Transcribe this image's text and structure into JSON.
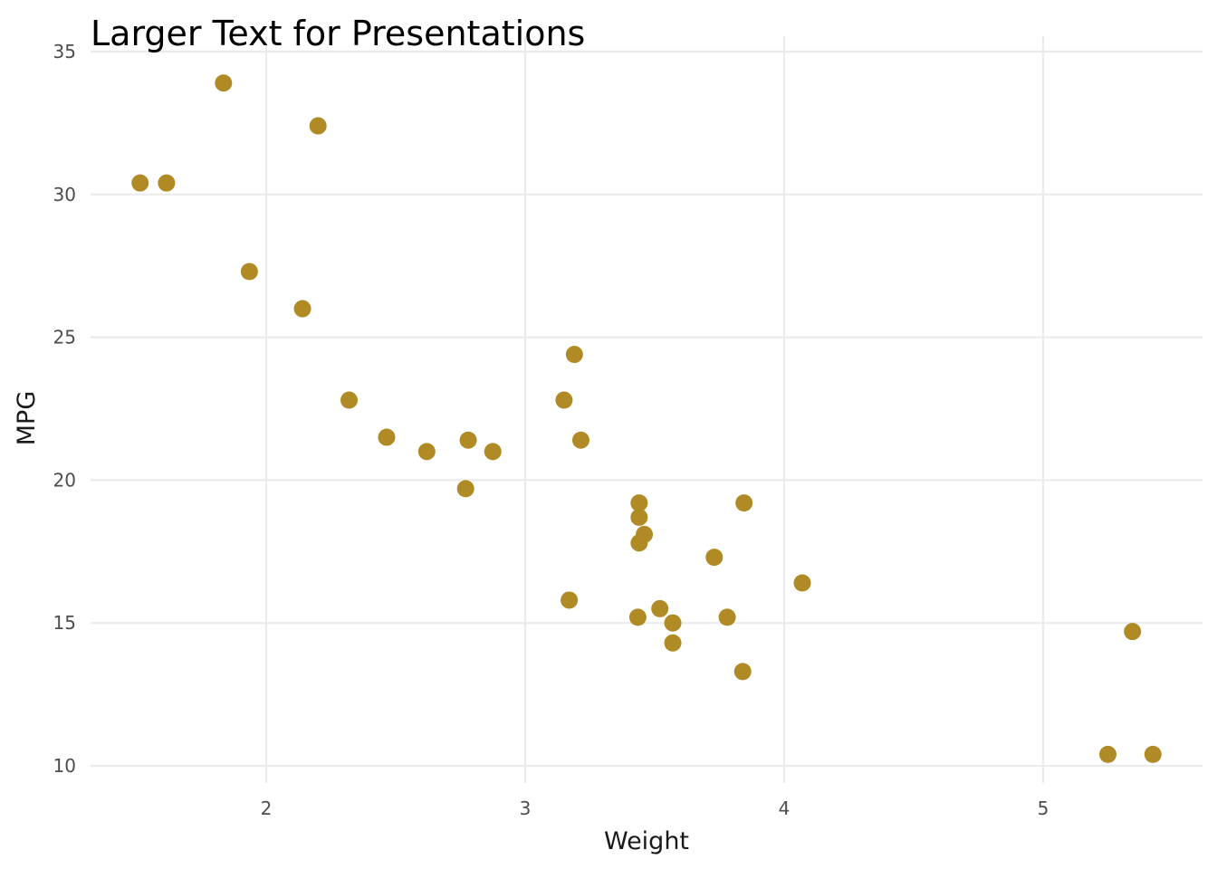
{
  "chart_data": {
    "type": "scatter",
    "title": "Larger Text for Presentations",
    "xlabel": "Weight",
    "ylabel": "MPG",
    "xlim": [
      1.3,
      5.6
    ],
    "ylim": [
      9.2,
      35
    ],
    "xticks": [
      2,
      3,
      4,
      5
    ],
    "yticks": [
      10,
      15,
      20,
      25,
      30,
      35
    ],
    "grid": true,
    "point_color": "#B08A24",
    "points": [
      {
        "x": 2.62,
        "y": 21.0
      },
      {
        "x": 2.875,
        "y": 21.0
      },
      {
        "x": 2.32,
        "y": 22.8
      },
      {
        "x": 3.215,
        "y": 21.4
      },
      {
        "x": 3.44,
        "y": 18.7
      },
      {
        "x": 3.46,
        "y": 18.1
      },
      {
        "x": 3.57,
        "y": 14.3
      },
      {
        "x": 3.19,
        "y": 24.4
      },
      {
        "x": 3.15,
        "y": 22.8
      },
      {
        "x": 3.44,
        "y": 19.2
      },
      {
        "x": 3.44,
        "y": 17.8
      },
      {
        "x": 4.07,
        "y": 16.4
      },
      {
        "x": 3.73,
        "y": 17.3
      },
      {
        "x": 3.78,
        "y": 15.2
      },
      {
        "x": 5.25,
        "y": 10.4
      },
      {
        "x": 5.424,
        "y": 10.4
      },
      {
        "x": 5.345,
        "y": 14.7
      },
      {
        "x": 2.2,
        "y": 32.4
      },
      {
        "x": 1.615,
        "y": 30.4
      },
      {
        "x": 1.835,
        "y": 33.9
      },
      {
        "x": 2.465,
        "y": 21.5
      },
      {
        "x": 3.52,
        "y": 15.5
      },
      {
        "x": 3.435,
        "y": 15.2
      },
      {
        "x": 3.84,
        "y": 13.3
      },
      {
        "x": 3.845,
        "y": 19.2
      },
      {
        "x": 1.935,
        "y": 27.3
      },
      {
        "x": 2.14,
        "y": 26.0
      },
      {
        "x": 1.513,
        "y": 30.4
      },
      {
        "x": 3.17,
        "y": 15.8
      },
      {
        "x": 2.77,
        "y": 19.7
      },
      {
        "x": 3.57,
        "y": 15.0
      },
      {
        "x": 2.78,
        "y": 21.4
      }
    ]
  }
}
